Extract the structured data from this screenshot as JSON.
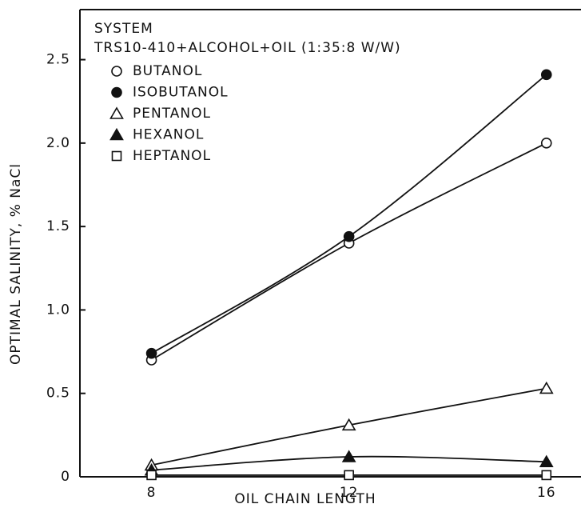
{
  "chart_data": {
    "type": "line",
    "title": "SYSTEM",
    "subtitle": "TRS10-410+ALCOHOL+OIL (1:35:8 W/W)",
    "x_label": "OIL CHAIN LENGTH",
    "y_label": "OPTIMAL SALINITY, % NaCl",
    "x": [
      8,
      12,
      16
    ],
    "series": [
      {
        "name": "BUTANOL",
        "color": "#111111",
        "marker": "circle",
        "filled": false,
        "values": [
          0.7,
          1.4,
          2.0
        ]
      },
      {
        "name": "ISOBUTANOL",
        "color": "#111111",
        "marker": "circle",
        "filled": true,
        "values": [
          0.74,
          1.44,
          2.41
        ]
      },
      {
        "name": "PENTANOL",
        "color": "#111111",
        "marker": "triangle",
        "filled": false,
        "values": [
          0.07,
          0.31,
          0.53
        ]
      },
      {
        "name": "HEXANOL",
        "color": "#111111",
        "marker": "triangle",
        "filled": true,
        "values": [
          0.04,
          0.12,
          0.09
        ]
      },
      {
        "name": "HEPTANOL",
        "color": "#111111",
        "marker": "square",
        "filled": false,
        "values": [
          0.01,
          0.01,
          0.01
        ]
      }
    ],
    "xlim": [
      6.55,
      16.7
    ],
    "xticks": [
      8,
      12,
      16
    ],
    "ylim": [
      0,
      2.8
    ],
    "yticks": [
      0,
      0.5,
      {
        "value": 1,
        "label": "1.0"
      },
      1.5,
      {
        "value": 2,
        "label": "2.0"
      },
      2.5
    ],
    "grid": false,
    "legend": "upper left"
  }
}
